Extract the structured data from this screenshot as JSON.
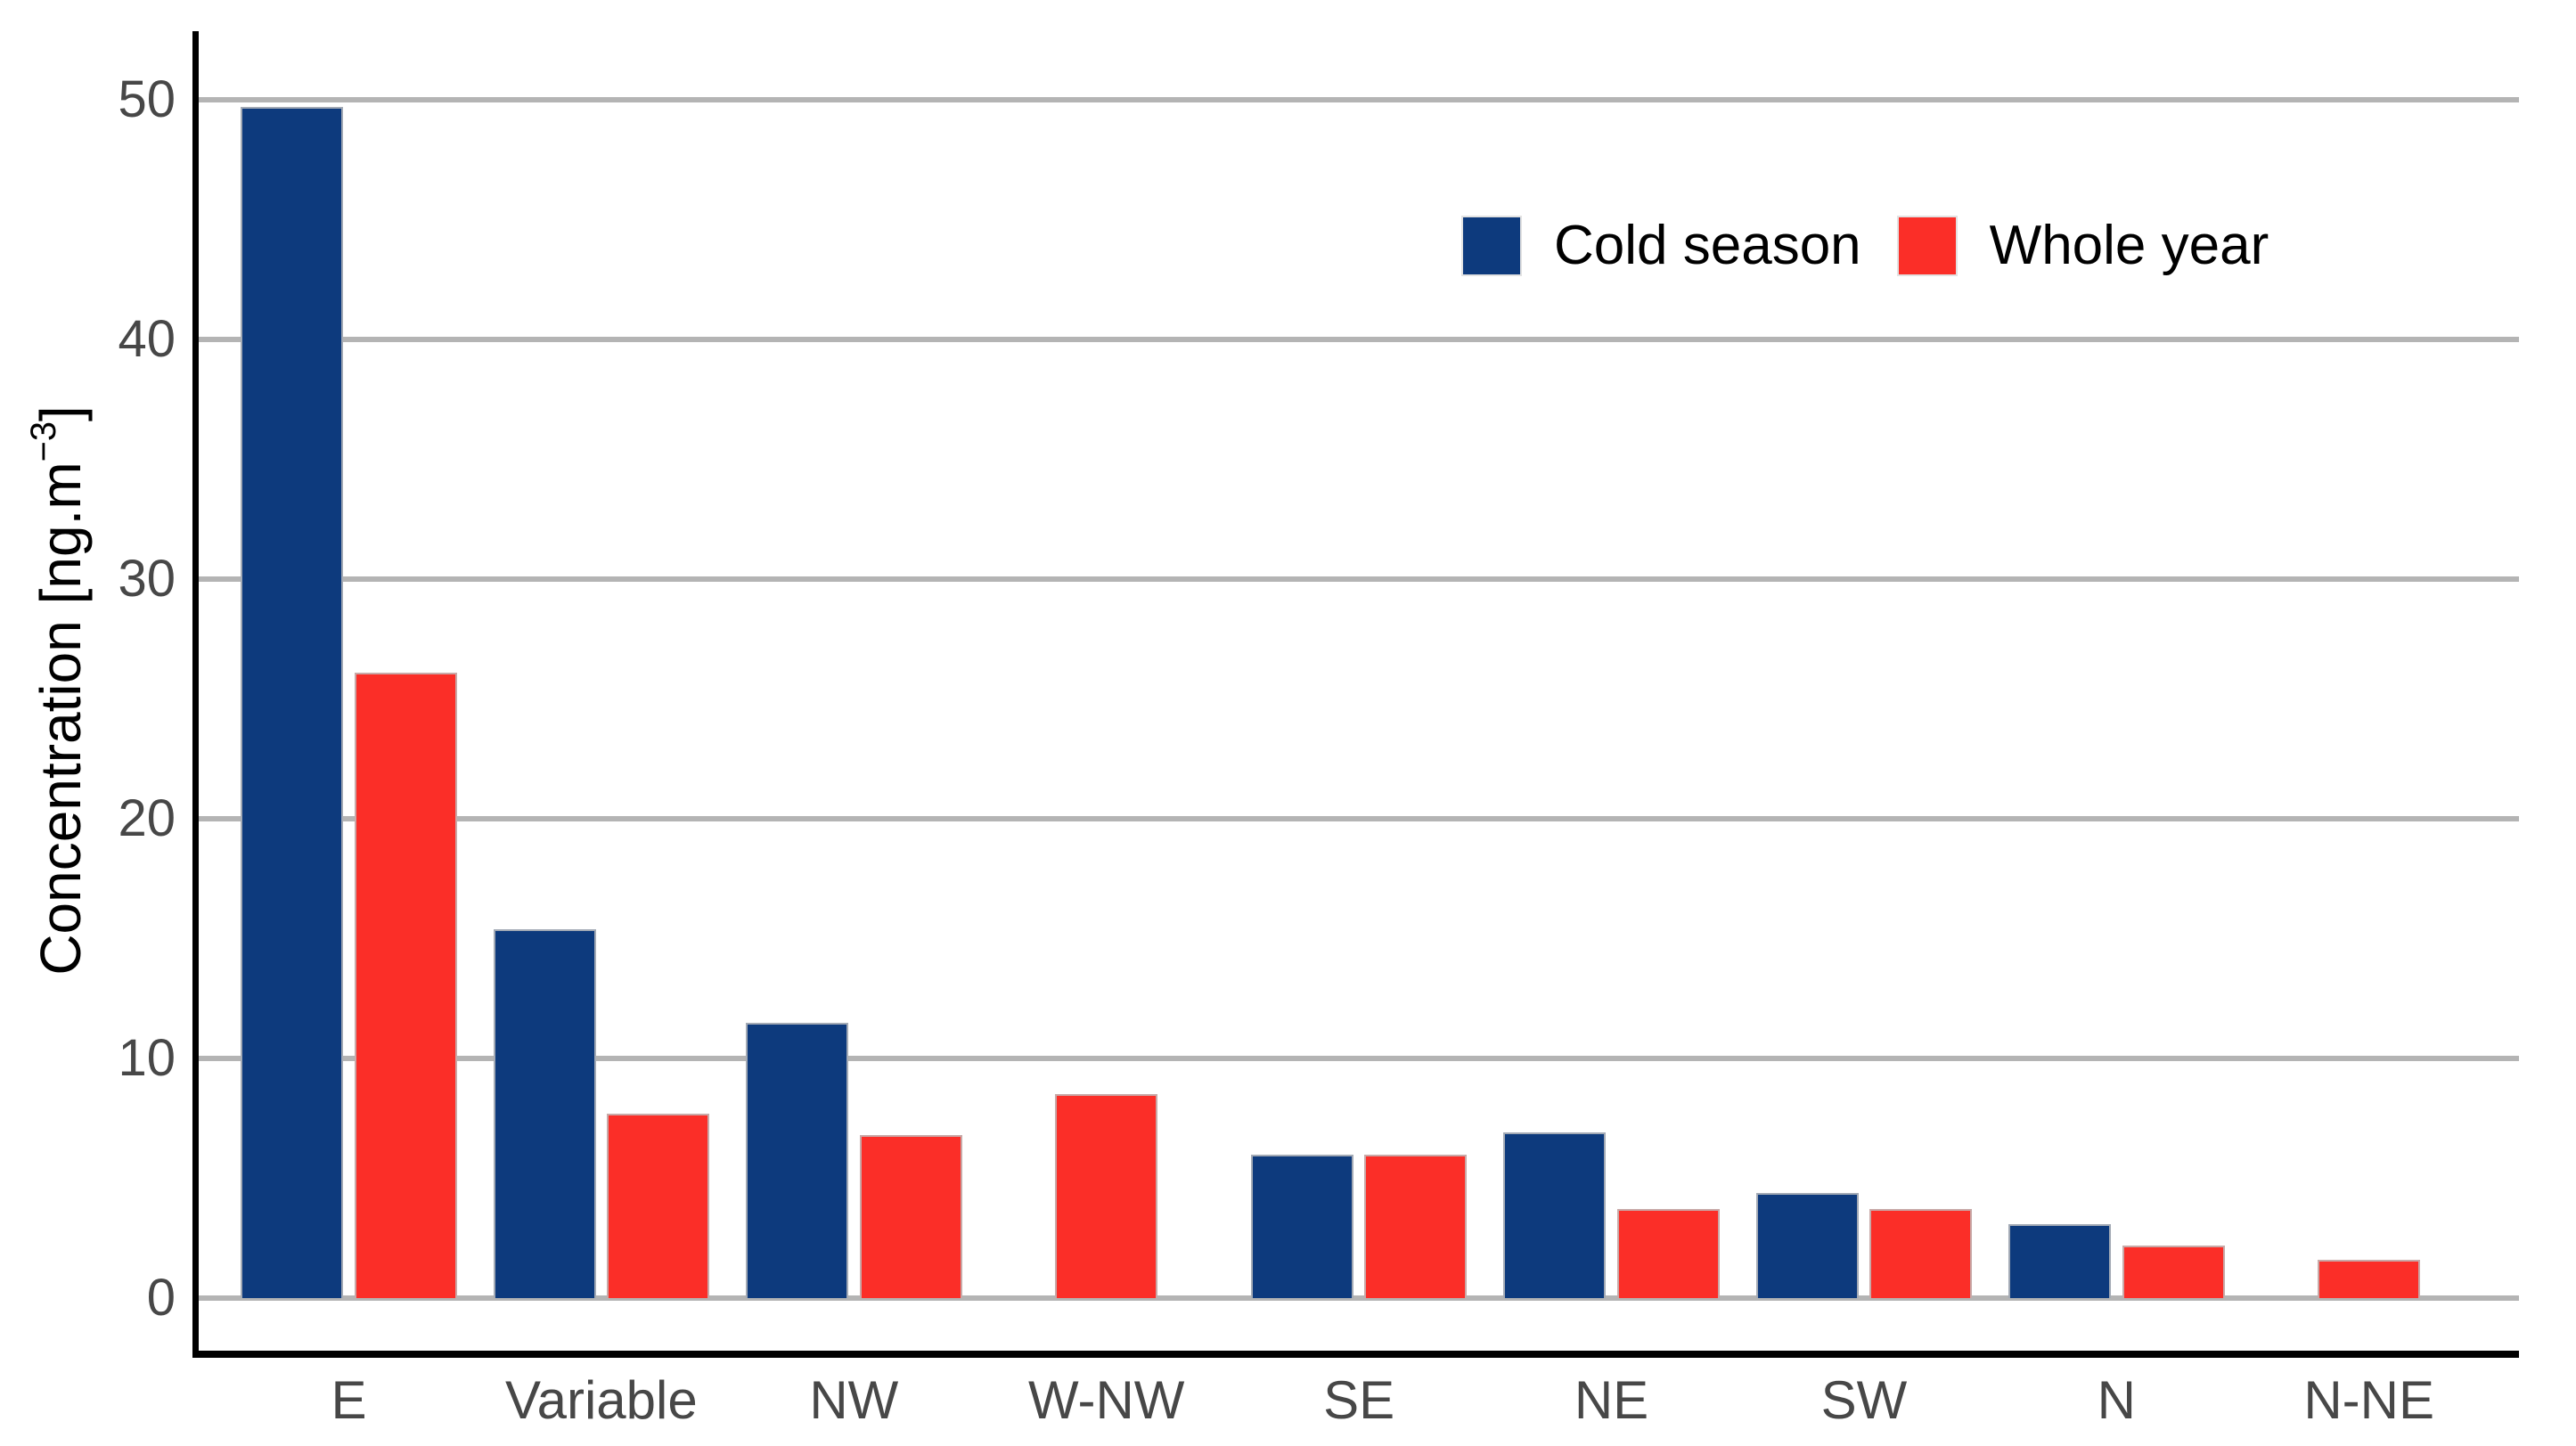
{
  "chart_data": {
    "type": "bar",
    "title": "",
    "categories": [
      "E",
      "Variable",
      "NW",
      "W-NW",
      "SE",
      "NE",
      "SW",
      "N",
      "N-NE"
    ],
    "series": [
      {
        "name": "Cold season",
        "color": "#0d3a7d",
        "values": [
          49.7,
          15.4,
          11.5,
          null,
          6.0,
          6.9,
          4.4,
          3.1,
          null
        ]
      },
      {
        "name": "Whole year",
        "color": "#fb2e28",
        "values": [
          26.1,
          7.7,
          6.8,
          8.5,
          6.0,
          3.7,
          3.7,
          2.2,
          1.6
        ]
      }
    ],
    "ylabel_main": "Concentration [ng.m",
    "ylabel_sup": "−3",
    "ylabel_close": "]",
    "xlabel": "",
    "yticks": [
      0,
      10,
      20,
      30,
      40,
      50
    ],
    "ylim": [
      -2.2,
      53
    ],
    "grid": "horizontal",
    "legend_position": "top-right-inside"
  },
  "colors": {
    "grid": "#b4b4b4",
    "axis": "#000000",
    "tick_text": "#474747",
    "legend_text": "#000000",
    "background": "#ffffff"
  }
}
